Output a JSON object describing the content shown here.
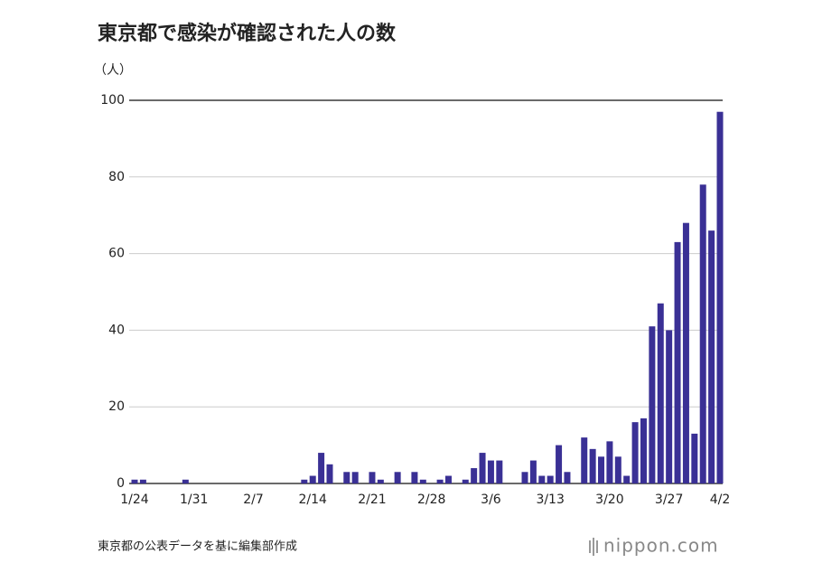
{
  "chart_data": {
    "type": "bar",
    "title": "東京都で感染が確認された人の数",
    "y_unit": "（人）",
    "source": "東京都の公表データを基に編集部作成",
    "logo": "nippon.com",
    "color": "#3a3095",
    "categories": [
      "1/24",
      null,
      null,
      null,
      null,
      null,
      null,
      "1/31",
      null,
      null,
      null,
      null,
      null,
      null,
      "2/7",
      null,
      null,
      null,
      null,
      null,
      null,
      "2/14",
      null,
      null,
      null,
      null,
      null,
      null,
      "2/21",
      null,
      null,
      null,
      null,
      null,
      null,
      "2/28",
      null,
      null,
      null,
      null,
      null,
      null,
      "3/6",
      null,
      null,
      null,
      null,
      null,
      null,
      "3/13",
      null,
      null,
      null,
      null,
      null,
      null,
      "3/20",
      null,
      null,
      null,
      null,
      null,
      null,
      "3/27",
      null,
      null,
      null,
      null,
      null,
      "4/2"
    ],
    "values": [
      1,
      1,
      0,
      0,
      0,
      0,
      1,
      0,
      0,
      0,
      0,
      0,
      0,
      0,
      0,
      0,
      0,
      0,
      0,
      0,
      1,
      2,
      8,
      5,
      0,
      3,
      3,
      0,
      3,
      1,
      0,
      3,
      0,
      3,
      1,
      0,
      1,
      2,
      0,
      1,
      4,
      8,
      6,
      6,
      0,
      0,
      3,
      6,
      2,
      2,
      10,
      3,
      0,
      12,
      9,
      7,
      11,
      7,
      2,
      16,
      17,
      41,
      47,
      40,
      63,
      68,
      13,
      78,
      66,
      97
    ],
    "ylim": [
      0,
      100
    ],
    "yticks": [
      0,
      20,
      40,
      60,
      80,
      100
    ],
    "grid": true
  }
}
